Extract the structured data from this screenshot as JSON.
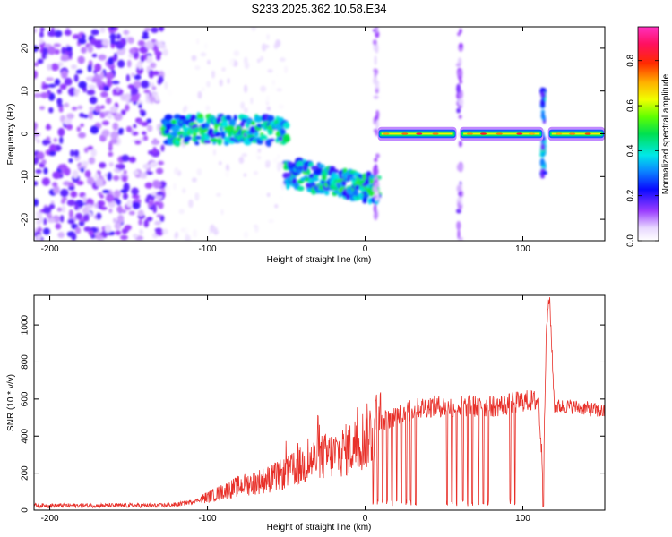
{
  "title": "S233.2025.362.10.58.E34",
  "chart_data": [
    {
      "type": "heatmap",
      "xlabel": "Height of straight line (km)",
      "ylabel": "Frequency (Hz)",
      "xlim": [
        -210,
        152
      ],
      "ylim": [
        -25,
        25
      ],
      "xticks": [
        -200,
        -100,
        0,
        100
      ],
      "yticks": [
        -20,
        -10,
        0,
        10,
        20
      ],
      "colorbar": {
        "label": "Normalized spectral amplitude",
        "range": [
          0,
          0.95
        ],
        "ticks": [
          0.0,
          0.2,
          0.4,
          0.6,
          0.8
        ],
        "tick_labels": [
          "0.0",
          "0.2",
          "0.4",
          "0.6",
          "0.8"
        ]
      },
      "features": [
        {
          "name": "noise",
          "x": [
            -210,
            -128
          ],
          "freq": [
            -25,
            25
          ],
          "level": 0.12
        },
        {
          "name": "band",
          "x": [
            -128,
            -50
          ],
          "freq_center": 1,
          "width": 4,
          "level": 0.3
        },
        {
          "name": "band",
          "x": [
            -50,
            8
          ],
          "freq_start": -9,
          "freq_end": -13,
          "width": 4,
          "level": 0.3
        },
        {
          "name": "carrier",
          "x": [
            8,
            58
          ],
          "freq_center": 0,
          "width": 2,
          "level": 0.9
        },
        {
          "name": "carrier",
          "x": [
            60,
            113
          ],
          "freq_center": 0,
          "width": 2,
          "level": 0.9
        },
        {
          "name": "carrier",
          "x": [
            116,
            152
          ],
          "freq_center": 0,
          "width": 2,
          "level": 0.9
        },
        {
          "name": "spike",
          "x": 7,
          "freq": [
            -25,
            25
          ],
          "level": 0.1
        },
        {
          "name": "spike",
          "x": 60,
          "freq": [
            -25,
            25
          ],
          "level": 0.12
        },
        {
          "name": "spike",
          "x": 113,
          "freq": [
            -10,
            10
          ],
          "level": 0.3
        }
      ]
    },
    {
      "type": "line",
      "xlabel": "Height of straight line (km)",
      "ylabel": "SNR (10 * v/v)",
      "xlim": [
        -210,
        152
      ],
      "ylim": [
        0,
        1160
      ],
      "xticks": [
        -200,
        -100,
        0,
        100
      ],
      "yticks": [
        0,
        200,
        400,
        600,
        800,
        1000
      ],
      "color": "#e8312a",
      "x": [
        -210,
        -180,
        -150,
        -130,
        -120,
        -110,
        -100,
        -90,
        -80,
        -70,
        -60,
        -50,
        -40,
        -30,
        -20,
        -10,
        0,
        10,
        20,
        30,
        40,
        50,
        60,
        70,
        80,
        90,
        100,
        110,
        113,
        115,
        117,
        120,
        130,
        140,
        152
      ],
      "y": [
        25,
        25,
        25,
        25,
        30,
        45,
        70,
        100,
        130,
        150,
        170,
        200,
        240,
        280,
        300,
        330,
        390,
        470,
        520,
        540,
        560,
        560,
        560,
        560,
        560,
        570,
        590,
        590,
        150,
        1000,
        1150,
        560,
        560,
        550,
        530
      ],
      "dropouts_x": [
        5,
        8,
        11,
        14,
        17,
        20,
        23,
        26,
        29,
        32,
        52,
        55,
        58,
        62,
        65,
        68,
        72,
        75,
        78,
        92,
        95,
        113
      ]
    }
  ]
}
